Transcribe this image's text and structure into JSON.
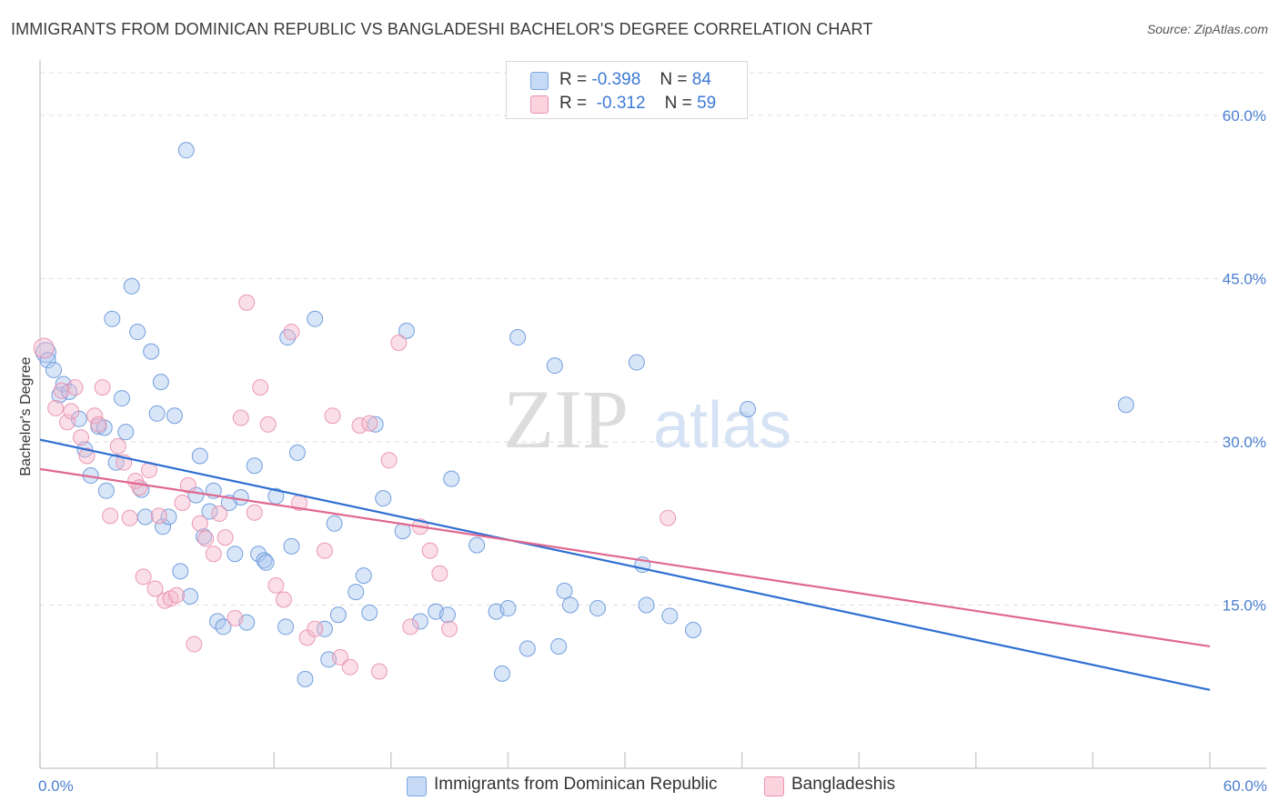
{
  "title": "IMMIGRANTS FROM DOMINICAN REPUBLIC VS BANGLADESHI BACHELOR'S DEGREE CORRELATION CHART",
  "source": "Source: ZipAtlas.com",
  "watermark": {
    "zip": "ZIP",
    "atlas": "atlas"
  },
  "legend": {
    "series1": {
      "r_label": "R =",
      "r_value": "-0.398",
      "n_label": "N =",
      "n_value": "84"
    },
    "series2": {
      "r_label": "R =",
      "r_value": "-0.312",
      "n_label": "N =",
      "n_value": "59"
    }
  },
  "bottom_legend": {
    "series1": "Immigrants from Dominican Republic",
    "series2": "Bangladeshis"
  },
  "chart_data": {
    "type": "scatter",
    "title": "IMMIGRANTS FROM DOMINICAN REPUBLIC VS BANGLADESHI BACHELOR'S DEGREE CORRELATION CHART",
    "xlabel": "",
    "ylabel": "Bachelor's Degree",
    "xlim": [
      0,
      60
    ],
    "ylim": [
      0,
      64
    ],
    "x_tick_labels": [
      "0.0%",
      "60.0%"
    ],
    "y_ticks": [
      15,
      30,
      45,
      60
    ],
    "y_tick_labels": [
      "15.0%",
      "30.0%",
      "45.0%",
      "60.0%"
    ],
    "grid": true,
    "colors": {
      "series1": "#aac8f0",
      "series1_line": "#2e6fd1",
      "series2": "#f5b8cb",
      "series2_line": "#e0688f",
      "tick": "#4a7fd1"
    },
    "series": [
      {
        "name": "Immigrants from Dominican Republic",
        "trend": {
          "x": [
            0,
            60
          ],
          "y": [
            30.2,
            7.2
          ]
        },
        "points": [
          [
            0.3,
            38.2
          ],
          [
            0.4,
            37.5
          ],
          [
            0.7,
            36.6
          ],
          [
            1.0,
            34.3
          ],
          [
            1.2,
            35.3
          ],
          [
            1.5,
            34.6
          ],
          [
            2.0,
            32.1
          ],
          [
            2.3,
            29.3
          ],
          [
            2.6,
            26.9
          ],
          [
            3.0,
            31.4
          ],
          [
            3.3,
            31.3
          ],
          [
            3.4,
            25.5
          ],
          [
            3.7,
            41.3
          ],
          [
            3.9,
            28.1
          ],
          [
            4.2,
            34.0
          ],
          [
            4.4,
            30.9
          ],
          [
            4.7,
            44.3
          ],
          [
            5.0,
            40.1
          ],
          [
            5.2,
            25.6
          ],
          [
            5.4,
            23.1
          ],
          [
            5.7,
            38.3
          ],
          [
            6.0,
            32.6
          ],
          [
            6.2,
            35.5
          ],
          [
            6.3,
            22.2
          ],
          [
            6.6,
            23.1
          ],
          [
            6.9,
            32.4
          ],
          [
            7.2,
            18.1
          ],
          [
            7.5,
            56.8
          ],
          [
            7.7,
            15.8
          ],
          [
            8.0,
            25.1
          ],
          [
            8.2,
            28.7
          ],
          [
            8.4,
            21.3
          ],
          [
            8.7,
            23.6
          ],
          [
            8.9,
            25.5
          ],
          [
            9.1,
            13.5
          ],
          [
            9.4,
            13.0
          ],
          [
            9.7,
            24.4
          ],
          [
            10.0,
            19.7
          ],
          [
            10.3,
            24.9
          ],
          [
            10.6,
            13.4
          ],
          [
            11.0,
            27.8
          ],
          [
            11.2,
            19.7
          ],
          [
            11.5,
            19.1
          ],
          [
            11.6,
            18.9
          ],
          [
            12.1,
            25.0
          ],
          [
            12.6,
            13.0
          ],
          [
            12.7,
            39.6
          ],
          [
            12.9,
            20.4
          ],
          [
            13.2,
            29.0
          ],
          [
            13.6,
            8.2
          ],
          [
            14.1,
            41.3
          ],
          [
            14.6,
            12.8
          ],
          [
            14.8,
            10.0
          ],
          [
            15.1,
            22.5
          ],
          [
            15.3,
            14.1
          ],
          [
            16.2,
            16.2
          ],
          [
            16.6,
            17.7
          ],
          [
            16.9,
            14.3
          ],
          [
            17.2,
            31.6
          ],
          [
            17.6,
            24.8
          ],
          [
            18.6,
            21.8
          ],
          [
            18.8,
            40.2
          ],
          [
            19.5,
            13.5
          ],
          [
            20.3,
            14.4
          ],
          [
            20.9,
            14.1
          ],
          [
            21.1,
            26.6
          ],
          [
            22.4,
            20.5
          ],
          [
            23.4,
            14.4
          ],
          [
            23.7,
            8.7
          ],
          [
            24.0,
            14.7
          ],
          [
            24.5,
            39.6
          ],
          [
            25.0,
            11.0
          ],
          [
            26.4,
            37.0
          ],
          [
            26.6,
            11.2
          ],
          [
            26.9,
            16.3
          ],
          [
            27.2,
            15.0
          ],
          [
            28.6,
            14.7
          ],
          [
            30.6,
            37.3
          ],
          [
            30.9,
            18.7
          ],
          [
            31.1,
            15.0
          ],
          [
            32.3,
            14.0
          ],
          [
            33.5,
            12.7
          ],
          [
            36.3,
            33.0
          ],
          [
            55.7,
            33.4
          ]
        ]
      },
      {
        "name": "Bangladeshis",
        "trend": {
          "x": [
            0,
            60
          ],
          "y": [
            27.5,
            11.2
          ]
        },
        "points": [
          [
            0.2,
            38.6
          ],
          [
            0.8,
            33.1
          ],
          [
            1.1,
            34.7
          ],
          [
            1.4,
            31.8
          ],
          [
            1.6,
            32.8
          ],
          [
            1.8,
            35.0
          ],
          [
            2.1,
            30.4
          ],
          [
            2.4,
            28.7
          ],
          [
            2.8,
            32.4
          ],
          [
            3.0,
            31.6
          ],
          [
            3.2,
            35.0
          ],
          [
            3.6,
            23.2
          ],
          [
            4.0,
            29.6
          ],
          [
            4.3,
            28.1
          ],
          [
            4.6,
            23.0
          ],
          [
            4.9,
            26.4
          ],
          [
            5.1,
            25.8
          ],
          [
            5.3,
            17.6
          ],
          [
            5.6,
            27.4
          ],
          [
            5.9,
            16.5
          ],
          [
            6.1,
            23.2
          ],
          [
            6.4,
            15.4
          ],
          [
            6.7,
            15.6
          ],
          [
            7.0,
            15.9
          ],
          [
            7.3,
            24.4
          ],
          [
            7.6,
            26.0
          ],
          [
            7.9,
            11.4
          ],
          [
            8.2,
            22.5
          ],
          [
            8.5,
            21.1
          ],
          [
            8.9,
            19.7
          ],
          [
            9.2,
            23.4
          ],
          [
            9.5,
            21.2
          ],
          [
            10.0,
            13.8
          ],
          [
            10.3,
            32.2
          ],
          [
            10.6,
            42.8
          ],
          [
            11.0,
            23.5
          ],
          [
            11.3,
            35.0
          ],
          [
            11.7,
            31.6
          ],
          [
            12.1,
            16.8
          ],
          [
            12.5,
            15.5
          ],
          [
            12.9,
            40.1
          ],
          [
            13.3,
            24.4
          ],
          [
            13.7,
            12.0
          ],
          [
            14.1,
            12.8
          ],
          [
            14.6,
            20.0
          ],
          [
            15.0,
            32.4
          ],
          [
            15.4,
            10.2
          ],
          [
            15.9,
            9.3
          ],
          [
            16.4,
            31.5
          ],
          [
            16.9,
            31.7
          ],
          [
            17.4,
            8.9
          ],
          [
            17.9,
            28.3
          ],
          [
            18.4,
            39.1
          ],
          [
            19.0,
            13.0
          ],
          [
            19.5,
            22.2
          ],
          [
            20.0,
            20.0
          ],
          [
            20.5,
            17.9
          ],
          [
            21.0,
            12.8
          ],
          [
            32.2,
            23.0
          ]
        ]
      }
    ]
  }
}
